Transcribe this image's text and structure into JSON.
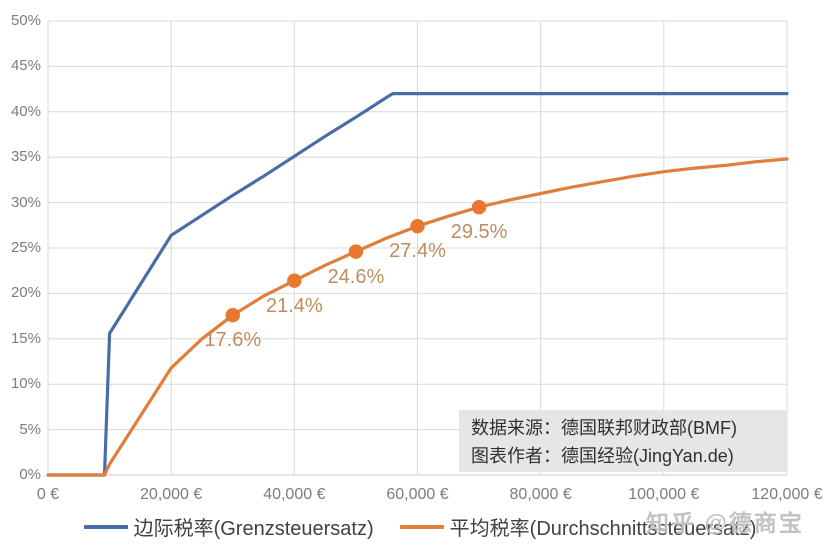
{
  "chart_data": {
    "type": "line",
    "title": "",
    "x_axis": {
      "max": 120000,
      "tick_values": [
        0,
        20000,
        40000,
        60000,
        80000,
        100000,
        120000
      ],
      "tick_labels": [
        "0 €",
        "20,000 €",
        "40,000 €",
        "60,000 €",
        "80,000 €",
        "100,000 €",
        "120,000 €"
      ]
    },
    "y_axis": {
      "min": 0,
      "max": 50,
      "step": 5,
      "tick_labels": [
        "0%",
        "5%",
        "10%",
        "15%",
        "20%",
        "25%",
        "30%",
        "35%",
        "40%",
        "45%",
        "50%"
      ]
    },
    "grid": true,
    "legend_position": "bottom",
    "series": [
      {
        "name": "边际税率(Grenzsteuersatz)",
        "color": "#486da6",
        "points": [
          [
            0,
            0
          ],
          [
            9168,
            0
          ],
          [
            10000,
            15.6
          ],
          [
            20000,
            26.4
          ],
          [
            25000,
            28.6
          ],
          [
            30000,
            30.8
          ],
          [
            35000,
            32.9
          ],
          [
            40000,
            35.1
          ],
          [
            45000,
            37.3
          ],
          [
            50000,
            39.4
          ],
          [
            55000,
            41.6
          ],
          [
            56000,
            42
          ],
          [
            60000,
            42
          ],
          [
            120000,
            42
          ]
        ]
      },
      {
        "name": "平均税率(Durchschnittssteuersatz)",
        "color": "#e07e3c",
        "marker_color": "#e8782f",
        "points": [
          [
            0,
            0
          ],
          [
            9168,
            0
          ],
          [
            10000,
            1.2
          ],
          [
            15000,
            6.5
          ],
          [
            20000,
            11.8
          ],
          [
            25000,
            15.0
          ],
          [
            30000,
            17.6
          ],
          [
            35000,
            19.7
          ],
          [
            40000,
            21.4
          ],
          [
            45000,
            23.1
          ],
          [
            50000,
            24.6
          ],
          [
            55000,
            26.1
          ],
          [
            60000,
            27.4
          ],
          [
            65000,
            28.5
          ],
          [
            70000,
            29.5
          ],
          [
            75000,
            30.3
          ],
          [
            80000,
            31.0
          ],
          [
            85000,
            31.7
          ],
          [
            90000,
            32.3
          ],
          [
            95000,
            32.9
          ],
          [
            100000,
            33.4
          ],
          [
            105000,
            33.8
          ],
          [
            110000,
            34.1
          ],
          [
            115000,
            34.5
          ],
          [
            120000,
            34.8
          ]
        ],
        "data_labels": [
          {
            "x": 30000,
            "y": 17.6,
            "label": "17.6%"
          },
          {
            "x": 40000,
            "y": 21.4,
            "label": "21.4%"
          },
          {
            "x": 50000,
            "y": 24.6,
            "label": "24.6%"
          },
          {
            "x": 60000,
            "y": 27.4,
            "label": "27.4%"
          },
          {
            "x": 70000,
            "y": 29.5,
            "label": "29.5%"
          }
        ]
      }
    ],
    "colors": {
      "gridline": "#d9d9d9",
      "axis_line": "#c9c9c9",
      "axis_text": "#7d7d7d",
      "data_label_text": "#c08c60"
    }
  },
  "source_box": {
    "line1": "数据来源：德国联邦财政部(BMF)",
    "line2": "图表作者：德国经验(JingYan.de)"
  },
  "watermark": {
    "text": "知乎 @德商宝"
  }
}
